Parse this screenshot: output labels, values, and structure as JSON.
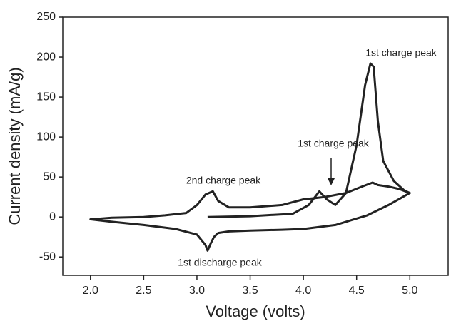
{
  "chart_data": {
    "type": "line",
    "x_label": "Voltage (volts)",
    "y_label": "Current density (mA/g)",
    "x": [
      3.1,
      3.5,
      3.9,
      4.05,
      4.15,
      4.22,
      4.3,
      4.4,
      4.5,
      4.58,
      4.63,
      4.66,
      4.7,
      4.75,
      4.85,
      4.95,
      5.0,
      4.9,
      4.8,
      4.7,
      4.65,
      4.55,
      4.4,
      4.2,
      4.0,
      3.8,
      3.5,
      3.3,
      3.2,
      3.15,
      3.08,
      3.0,
      2.9,
      2.7,
      2.5,
      2.2,
      2.0,
      2.2,
      2.5,
      2.8,
      3.0,
      3.08,
      3.1,
      3.13,
      3.16,
      3.2,
      3.3,
      3.5,
      3.8,
      4.0,
      4.3,
      4.6,
      4.8,
      5.0
    ],
    "values": [
      0,
      1,
      4,
      15,
      32,
      22,
      15,
      30,
      90,
      165,
      192,
      188,
      120,
      70,
      45,
      33,
      30,
      35,
      38,
      40,
      43,
      38,
      30,
      25,
      22,
      15,
      12,
      12,
      20,
      32,
      28,
      15,
      5,
      2,
      0,
      -1,
      -3,
      -6,
      -10,
      -15,
      -22,
      -35,
      -42,
      -33,
      -25,
      -20,
      -18,
      -17,
      -16,
      -15,
      -10,
      2,
      15,
      30
    ],
    "color": "#222222",
    "xlim": [
      1.74,
      5.36
    ],
    "ylim": [
      -73,
      250
    ],
    "xticks": [
      {
        "value": 2,
        "label": "2.0"
      },
      2.5,
      {
        "value": 3,
        "label": "3.0"
      },
      3.5,
      {
        "value": 4,
        "label": "4.0"
      },
      4.5,
      {
        "value": 5,
        "label": "5.0"
      }
    ],
    "yticks": [
      -50,
      0,
      50,
      100,
      150,
      200,
      250
    ],
    "grid": false,
    "annotations": [
      "1st charge peak",
      "1st charge peak",
      "2nd charge peak",
      "1st discharge peak"
    ]
  }
}
